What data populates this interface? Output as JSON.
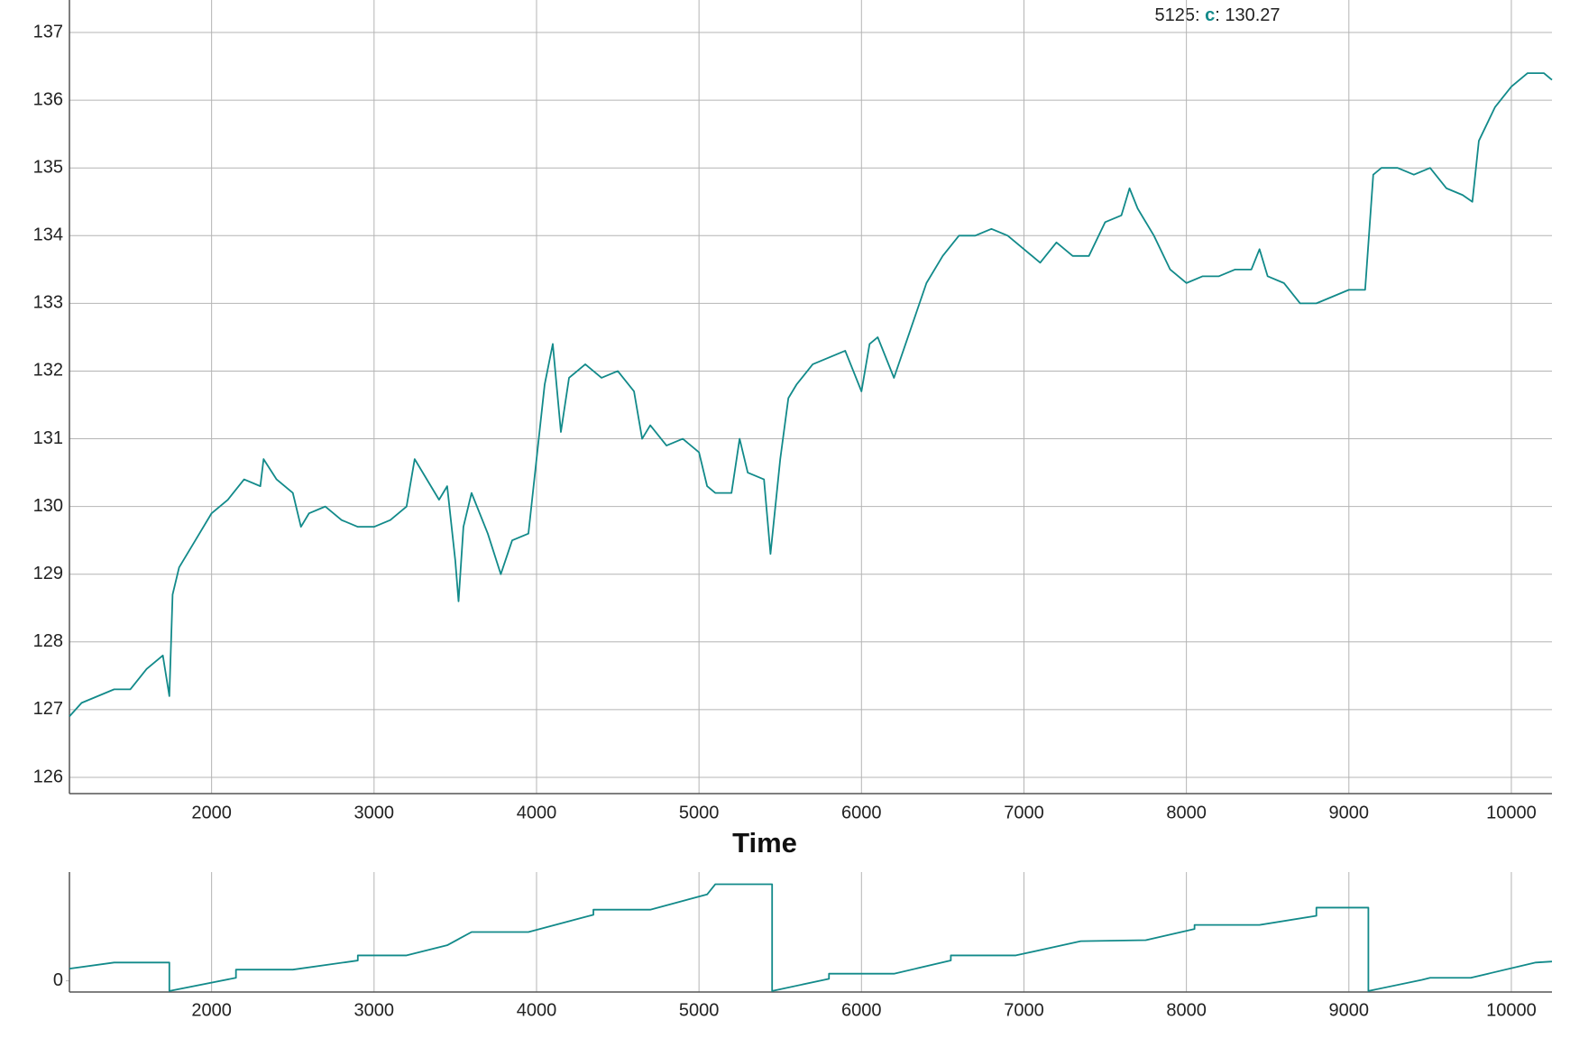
{
  "chart_data": [
    {
      "type": "line",
      "annotation": [
        "5125: ",
        "c",
        ": 130.27"
      ],
      "x_label": "Time",
      "x": [
        1125,
        1200,
        1300,
        1400,
        1500,
        1600,
        1700,
        1740,
        1760,
        1800,
        1900,
        2000,
        2100,
        2200,
        2300,
        2320,
        2400,
        2500,
        2550,
        2600,
        2700,
        2800,
        2900,
        3000,
        3100,
        3200,
        3250,
        3300,
        3400,
        3450,
        3500,
        3520,
        3550,
        3600,
        3700,
        3780,
        3850,
        3950,
        4000,
        4050,
        4100,
        4150,
        4200,
        4300,
        4400,
        4500,
        4600,
        4650,
        4700,
        4800,
        4900,
        5000,
        5050,
        5100,
        5200,
        5250,
        5300,
        5400,
        5440,
        5500,
        5550,
        5600,
        5700,
        5800,
        5900,
        6000,
        6050,
        6100,
        6200,
        6300,
        6400,
        6500,
        6600,
        6700,
        6800,
        6900,
        7000,
        7100,
        7200,
        7300,
        7400,
        7500,
        7600,
        7650,
        7700,
        7800,
        7900,
        8000,
        8100,
        8200,
        8300,
        8400,
        8450,
        8500,
        8600,
        8700,
        8800,
        8900,
        9000,
        9100,
        9150,
        9200,
        9300,
        9400,
        9500,
        9600,
        9700,
        9760,
        9800,
        9900,
        10000,
        10100,
        10200,
        10250
      ],
      "series": [
        {
          "name": "c",
          "color": "#128a8a",
          "values": [
            126.9,
            127.1,
            127.2,
            127.3,
            127.3,
            127.6,
            127.8,
            127.2,
            128.7,
            129.1,
            129.5,
            129.9,
            130.1,
            130.4,
            130.3,
            130.7,
            130.4,
            130.2,
            129.7,
            129.9,
            130.0,
            129.8,
            129.7,
            129.7,
            129.8,
            130.0,
            130.7,
            130.5,
            130.1,
            130.3,
            129.2,
            128.6,
            129.7,
            130.2,
            129.6,
            129.0,
            129.5,
            129.6,
            130.7,
            131.8,
            132.4,
            131.1,
            131.9,
            132.1,
            131.9,
            132.0,
            131.7,
            131.0,
            131.2,
            130.9,
            131.0,
            130.8,
            130.3,
            130.2,
            130.2,
            131.0,
            130.5,
            130.4,
            129.3,
            130.7,
            131.6,
            131.8,
            132.1,
            132.2,
            132.3,
            131.7,
            132.4,
            132.5,
            131.9,
            132.6,
            133.3,
            133.7,
            134.0,
            134.0,
            134.1,
            134.0,
            133.8,
            133.6,
            133.9,
            133.7,
            133.7,
            134.2,
            134.3,
            134.7,
            134.4,
            134.0,
            133.5,
            133.3,
            133.4,
            133.4,
            133.5,
            133.5,
            133.8,
            133.4,
            133.3,
            133.0,
            133.0,
            133.1,
            133.2,
            133.2,
            134.9,
            135.0,
            135.0,
            134.9,
            135.0,
            134.7,
            134.6,
            134.5,
            135.4,
            135.9,
            136.2,
            136.4,
            136.4,
            136.3
          ]
        }
      ],
      "xlim": [
        1125,
        10250
      ],
      "ylim": [
        125.76,
        137.48
      ],
      "xticks": [
        2000,
        3000,
        4000,
        5000,
        6000,
        7000,
        8000,
        9000,
        10000
      ],
      "yticks": [
        126,
        127,
        128,
        129,
        130,
        131,
        132,
        133,
        134,
        135,
        136,
        137
      ],
      "grid": true
    },
    {
      "type": "line",
      "x": [
        1125,
        1400,
        1400,
        1740,
        1740,
        2150,
        2150,
        2500,
        2900,
        2900,
        3200,
        3450,
        3600,
        3950,
        4350,
        4350,
        4700,
        5050,
        5100,
        5450,
        5450,
        5800,
        5800,
        6200,
        6550,
        6550,
        6950,
        7350,
        7750,
        8050,
        8050,
        8450,
        8800,
        8800,
        9120,
        9120,
        9450,
        9500,
        9750,
        10150,
        10250
      ],
      "series": [
        {
          "name": "c",
          "color": "#128a8a",
          "values": [
            12,
            18,
            18,
            18,
            -10,
            3,
            11,
            11,
            20,
            25,
            25,
            35,
            48,
            48,
            65,
            70,
            70,
            85,
            95,
            95,
            -10,
            2,
            7,
            7,
            20,
            25,
            25,
            39,
            40,
            51,
            55,
            55,
            64,
            72,
            72,
            -10,
            1,
            3,
            3,
            18,
            19
          ]
        }
      ],
      "xlim": [
        1125,
        10250
      ],
      "ylim": [
        -11,
        107
      ],
      "xticks": [
        2000,
        3000,
        4000,
        5000,
        6000,
        7000,
        8000,
        9000,
        10000
      ],
      "yticks": [
        0
      ],
      "grid": true
    }
  ]
}
